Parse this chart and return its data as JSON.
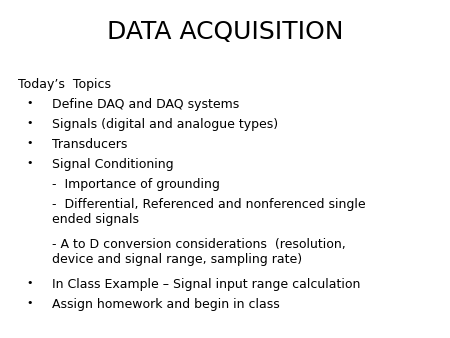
{
  "title": "DATA ACQUISITION",
  "background_color": "#ffffff",
  "text_color": "#000000",
  "title_fontsize": 18,
  "body_fontsize": 9,
  "header": "Today’s  Topics",
  "bullet_items": [
    {
      "text": "Define DAQ and DAQ systems",
      "bullet": true,
      "sub": false,
      "lines": 1
    },
    {
      "text": "Signals (digital and analogue types)",
      "bullet": true,
      "sub": false,
      "lines": 1
    },
    {
      "text": "Transducers",
      "bullet": true,
      "sub": false,
      "lines": 1
    },
    {
      "text": "Signal Conditioning",
      "bullet": true,
      "sub": false,
      "lines": 1
    },
    {
      "text": "-  Importance of grounding",
      "bullet": false,
      "sub": true,
      "lines": 1
    },
    {
      "text": "-  Differential, Referenced and nonferenced single\nended signals",
      "bullet": false,
      "sub": true,
      "lines": 2
    },
    {
      "text": "- A to D conversion considerations  (resolution,\ndevice and signal range, sampling rate)",
      "bullet": false,
      "sub": true,
      "lines": 2
    },
    {
      "text": "In Class Example – Signal input range calculation",
      "bullet": true,
      "sub": false,
      "lines": 1
    },
    {
      "text": "Assign homework and begin in class",
      "bullet": true,
      "sub": false,
      "lines": 1
    }
  ],
  "bullet_char": "•",
  "font_family": "Arial"
}
